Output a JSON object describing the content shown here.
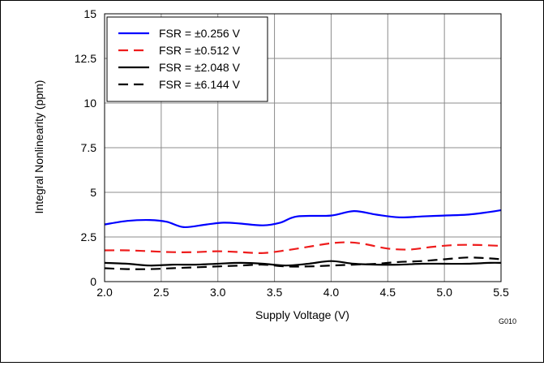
{
  "chart_data": {
    "type": "line",
    "title": "",
    "xlabel": "Supply Voltage (V)",
    "ylabel": "Integral Nonlinearity (ppm)",
    "xlim": [
      2.0,
      5.5
    ],
    "ylim": [
      0,
      15
    ],
    "xticks": [
      "2.0",
      "2.5",
      "3.0",
      "3.5",
      "4.0",
      "4.5",
      "5.0",
      "5.5"
    ],
    "yticks": [
      "0",
      "2.5",
      "5",
      "7.5",
      "10",
      "12.5",
      "15"
    ],
    "grid": true,
    "legend_position": "top-left",
    "figure_id": "G010",
    "series": [
      {
        "name": "FSR = ±0.256 V",
        "color": "#0000ff",
        "dash": "solid",
        "x": [
          2.0,
          2.2,
          2.4,
          2.55,
          2.7,
          2.9,
          3.05,
          3.2,
          3.4,
          3.55,
          3.7,
          4.0,
          4.2,
          4.4,
          4.6,
          4.8,
          5.0,
          5.2,
          5.4,
          5.5
        ],
        "y": [
          3.2,
          3.4,
          3.45,
          3.35,
          3.05,
          3.2,
          3.3,
          3.25,
          3.15,
          3.3,
          3.65,
          3.7,
          3.95,
          3.75,
          3.6,
          3.65,
          3.7,
          3.75,
          3.9,
          4.0
        ]
      },
      {
        "name": "FSR = ±0.512 V",
        "color": "#ee1c1c",
        "dash": "dashed",
        "x": [
          2.0,
          2.2,
          2.4,
          2.6,
          2.8,
          3.0,
          3.2,
          3.4,
          3.6,
          3.8,
          4.0,
          4.15,
          4.3,
          4.5,
          4.7,
          4.9,
          5.1,
          5.3,
          5.5
        ],
        "y": [
          1.75,
          1.75,
          1.7,
          1.65,
          1.65,
          1.7,
          1.65,
          1.6,
          1.75,
          1.95,
          2.15,
          2.2,
          2.1,
          1.85,
          1.8,
          1.95,
          2.05,
          2.05,
          2.0
        ]
      },
      {
        "name": "FSR = ±2.048 V",
        "color": "#000000",
        "dash": "solid",
        "x": [
          2.0,
          2.2,
          2.4,
          2.6,
          2.8,
          3.0,
          3.2,
          3.4,
          3.6,
          3.8,
          4.0,
          4.2,
          4.4,
          4.6,
          4.8,
          5.0,
          5.2,
          5.4,
          5.5
        ],
        "y": [
          1.05,
          1.0,
          0.9,
          0.95,
          0.95,
          1.0,
          1.05,
          1.0,
          0.9,
          1.0,
          1.15,
          1.0,
          0.95,
          0.95,
          1.0,
          1.0,
          1.0,
          1.05,
          1.05
        ]
      },
      {
        "name": "FSR = ±6.144 V",
        "color": "#000000",
        "dash": "dashed",
        "x": [
          2.0,
          2.2,
          2.4,
          2.6,
          2.8,
          3.0,
          3.2,
          3.4,
          3.6,
          3.8,
          4.0,
          4.2,
          4.4,
          4.6,
          4.8,
          5.0,
          5.2,
          5.4,
          5.5
        ],
        "y": [
          0.75,
          0.7,
          0.7,
          0.75,
          0.8,
          0.85,
          0.9,
          0.95,
          0.85,
          0.85,
          0.9,
          0.95,
          1.0,
          1.1,
          1.15,
          1.25,
          1.35,
          1.3,
          1.25
        ]
      }
    ]
  }
}
